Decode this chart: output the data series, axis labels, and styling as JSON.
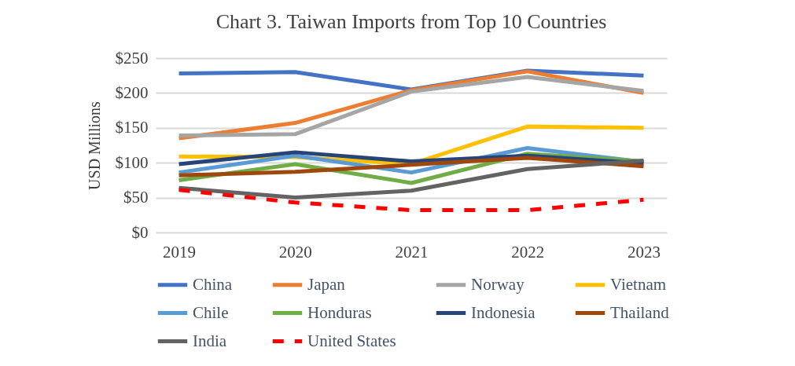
{
  "chart_data": {
    "type": "line",
    "title": "Chart 3. Taiwan Imports from Top 10 Countries",
    "ylabel": "USD Millions",
    "categories": [
      "2019",
      "2020",
      "2021",
      "2022",
      "2023"
    ],
    "ylim": [
      0,
      250
    ],
    "yticks": [
      {
        "value": 0,
        "label": "$0"
      },
      {
        "value": 50,
        "label": "$50"
      },
      {
        "value": 100,
        "label": "$100"
      },
      {
        "value": 150,
        "label": "$150"
      },
      {
        "value": 200,
        "label": "$200"
      },
      {
        "value": 250,
        "label": "$250"
      }
    ],
    "grid": "y",
    "legend": "bottom",
    "marker": "none",
    "series": [
      {
        "name": "China",
        "color": "#4472c4",
        "values": [
          228,
          230,
          205,
          232,
          225
        ]
      },
      {
        "name": "Japan",
        "color": "#ed7d31",
        "values": [
          135,
          157,
          204,
          231,
          200
        ]
      },
      {
        "name": "Norway",
        "color": "#a5a5a5",
        "values": [
          139,
          141,
          202,
          223,
          203
        ]
      },
      {
        "name": "Vietnam",
        "color": "#ffc000",
        "values": [
          109,
          108,
          98,
          152,
          150
        ]
      },
      {
        "name": "Chile",
        "color": "#5b9bd5",
        "values": [
          86,
          110,
          86,
          121,
          101
        ]
      },
      {
        "name": "Honduras",
        "color": "#70ad47",
        "values": [
          75,
          98,
          71,
          113,
          102
        ]
      },
      {
        "name": "Indonesia",
        "color": "#264478",
        "values": [
          98,
          115,
          102,
          110,
          99
        ]
      },
      {
        "name": "Thailand",
        "color": "#9e480e",
        "values": [
          82,
          87,
          97,
          107,
          95
        ]
      },
      {
        "name": "India",
        "color": "#636363",
        "values": [
          64,
          50,
          60,
          91,
          103
        ]
      },
      {
        "name": "United States",
        "color": "#ff0000",
        "line_style": "dashed",
        "values": [
          61,
          43,
          32,
          32,
          47
        ]
      }
    ]
  }
}
